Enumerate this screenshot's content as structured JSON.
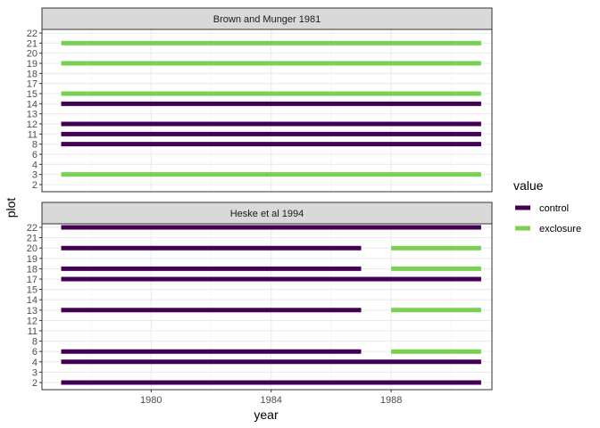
{
  "chart_data": {
    "type": "segment",
    "xlabel": "year",
    "ylabel": "plot",
    "xlim": [
      1977,
      1991.5
    ],
    "x_ticks": [
      1980,
      1984,
      1988
    ],
    "legend": {
      "title": "value",
      "placement": "right",
      "entries": [
        {
          "name": "control",
          "color": "#440154"
        },
        {
          "name": "exclosure",
          "color": "#7AD151"
        }
      ]
    },
    "grid": true,
    "panels": [
      {
        "title": "Brown and Munger 1981",
        "y_ticks": [
          "2",
          "3",
          "4",
          "6",
          "8",
          "11",
          "12",
          "13",
          "14",
          "15",
          "17",
          "18",
          "19",
          "20",
          "21",
          "22"
        ],
        "segments": [
          {
            "plot": "3",
            "value": "exclosure",
            "start": 1977,
            "end": 1991
          },
          {
            "plot": "8",
            "value": "control",
            "start": 1977,
            "end": 1991
          },
          {
            "plot": "11",
            "value": "control",
            "start": 1977,
            "end": 1991
          },
          {
            "plot": "12",
            "value": "control",
            "start": 1977,
            "end": 1991
          },
          {
            "plot": "14",
            "value": "control",
            "start": 1977,
            "end": 1991
          },
          {
            "plot": "15",
            "value": "exclosure",
            "start": 1977,
            "end": 1991
          },
          {
            "plot": "19",
            "value": "exclosure",
            "start": 1977,
            "end": 1991
          },
          {
            "plot": "21",
            "value": "exclosure",
            "start": 1977,
            "end": 1991
          }
        ]
      },
      {
        "title": "Heske et al 1994",
        "y_ticks": [
          "2",
          "3",
          "4",
          "6",
          "8",
          "11",
          "12",
          "13",
          "14",
          "15",
          "17",
          "18",
          "19",
          "20",
          "21",
          "22"
        ],
        "segments": [
          {
            "plot": "2",
            "value": "control",
            "start": 1977,
            "end": 1991
          },
          {
            "plot": "4",
            "value": "control",
            "start": 1977,
            "end": 1991
          },
          {
            "plot": "6",
            "value": "control",
            "start": 1977,
            "end": 1987
          },
          {
            "plot": "6",
            "value": "exclosure",
            "start": 1988,
            "end": 1991
          },
          {
            "plot": "13",
            "value": "control",
            "start": 1977,
            "end": 1987
          },
          {
            "plot": "13",
            "value": "exclosure",
            "start": 1988,
            "end": 1991
          },
          {
            "plot": "17",
            "value": "control",
            "start": 1977,
            "end": 1991
          },
          {
            "plot": "18",
            "value": "control",
            "start": 1977,
            "end": 1987
          },
          {
            "plot": "18",
            "value": "exclosure",
            "start": 1988,
            "end": 1991
          },
          {
            "plot": "20",
            "value": "control",
            "start": 1977,
            "end": 1987
          },
          {
            "plot": "20",
            "value": "exclosure",
            "start": 1988,
            "end": 1991
          },
          {
            "plot": "22",
            "value": "control",
            "start": 1977,
            "end": 1991
          }
        ]
      }
    ]
  }
}
